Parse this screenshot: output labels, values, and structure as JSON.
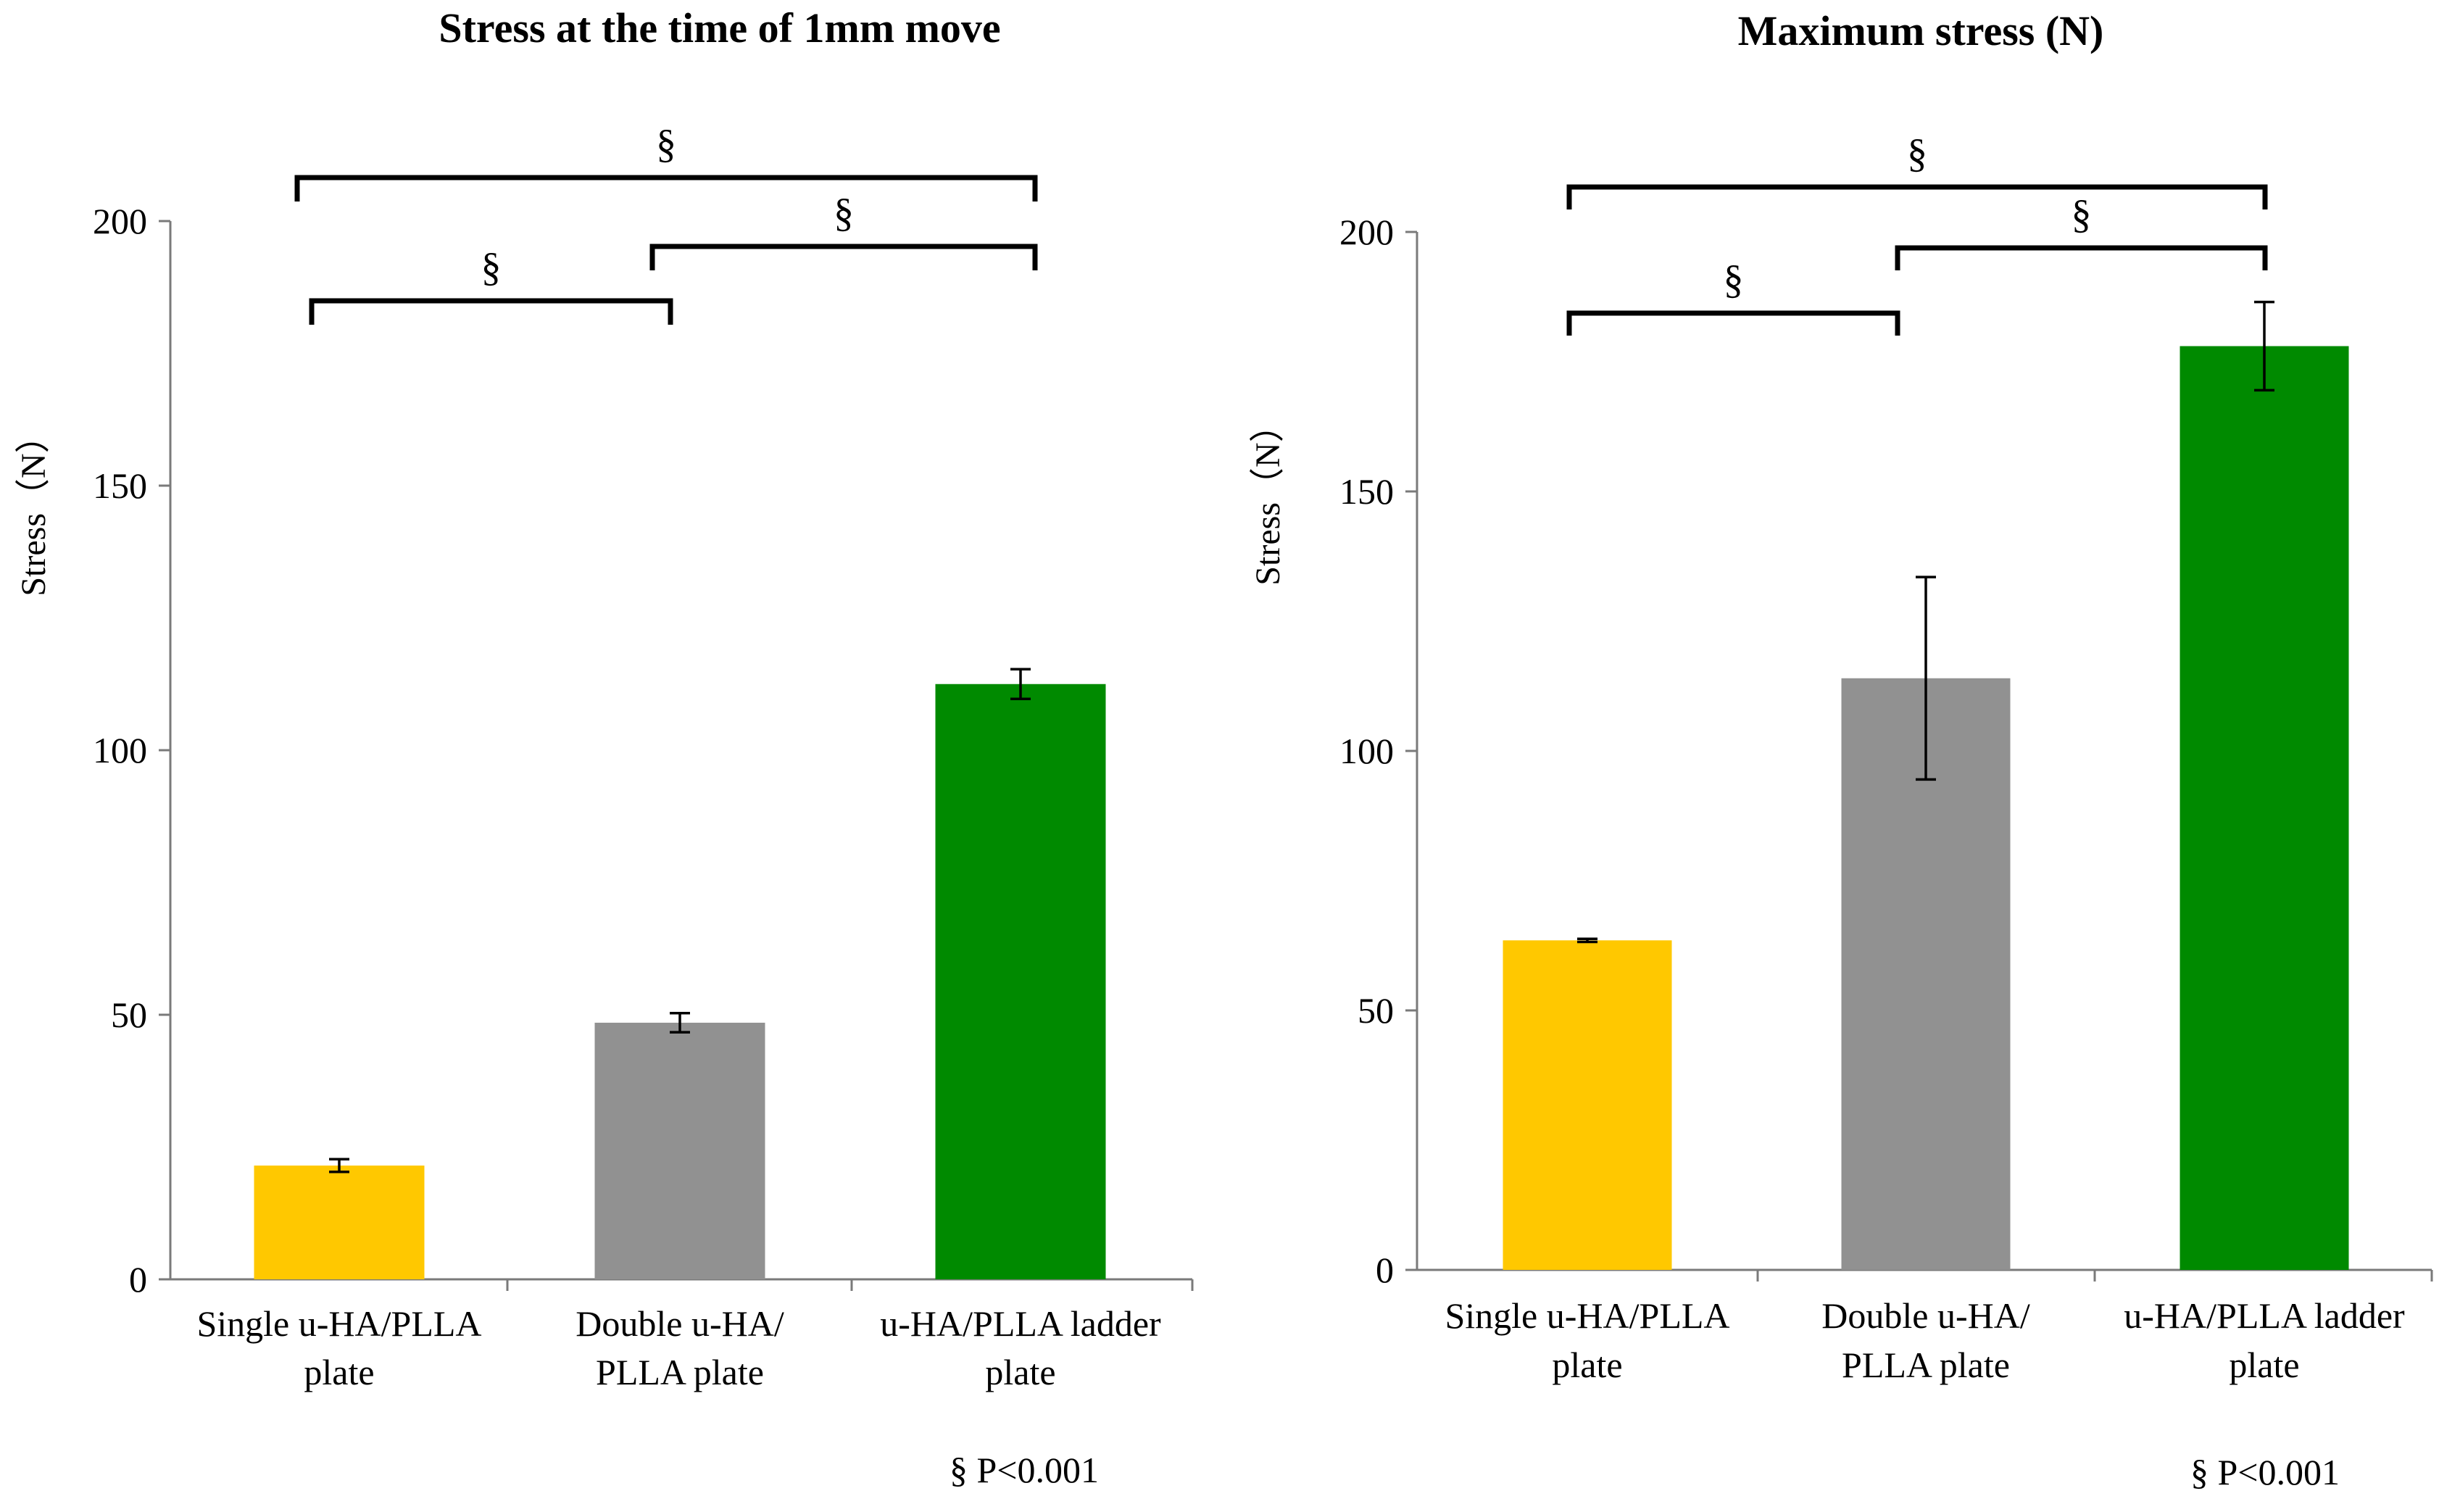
{
  "chart_data": [
    {
      "type": "bar",
      "title": "Stress at the time of 1mm move",
      "ylabel": "Stress（N）",
      "xlabel": "",
      "ylim": [
        0,
        200
      ],
      "yticks": [
        0,
        50,
        100,
        150,
        200
      ],
      "categories": [
        [
          "Single u-HA/PLLA",
          "plate"
        ],
        [
          "Double u-HA/",
          "PLLA plate"
        ],
        [
          "u-HA/PLLA ladder",
          "plate"
        ]
      ],
      "values": [
        21.5,
        48.5,
        112.5
      ],
      "errors": [
        1.2,
        1.8,
        2.8
      ],
      "colors": [
        "#ffc800",
        "#919191",
        "#008a00"
      ],
      "significance": [
        {
          "from": 0,
          "to": 1,
          "label": "§",
          "level": 0
        },
        {
          "from": 1,
          "to": 2,
          "label": "§",
          "level": 1
        },
        {
          "from": 0,
          "to": 2,
          "label": "§",
          "level": 2
        }
      ],
      "footnote": "§ P<0.001"
    },
    {
      "type": "bar",
      "title": "Maximum stress (N)",
      "ylabel": "Stress（N）",
      "xlabel": "",
      "ylim": [
        0,
        200
      ],
      "yticks": [
        0,
        50,
        100,
        150,
        200
      ],
      "categories": [
        [
          "Single u-HA/PLLA",
          "plate"
        ],
        [
          "Double u-HA/",
          "PLLA plate"
        ],
        [
          "u-HA/PLLA ladder",
          "plate"
        ]
      ],
      "values": [
        63.5,
        114,
        178
      ],
      "errors": [
        0.3,
        19.5,
        8.5
      ],
      "colors": [
        "#ffc800",
        "#919191",
        "#008a00"
      ],
      "significance": [
        {
          "from": 0,
          "to": 1,
          "label": "§",
          "level": 0
        },
        {
          "from": 1,
          "to": 2,
          "label": "§",
          "level": 1
        },
        {
          "from": 0,
          "to": 2,
          "label": "§",
          "level": 2
        }
      ],
      "footnote": "§ P<0.001"
    }
  ]
}
